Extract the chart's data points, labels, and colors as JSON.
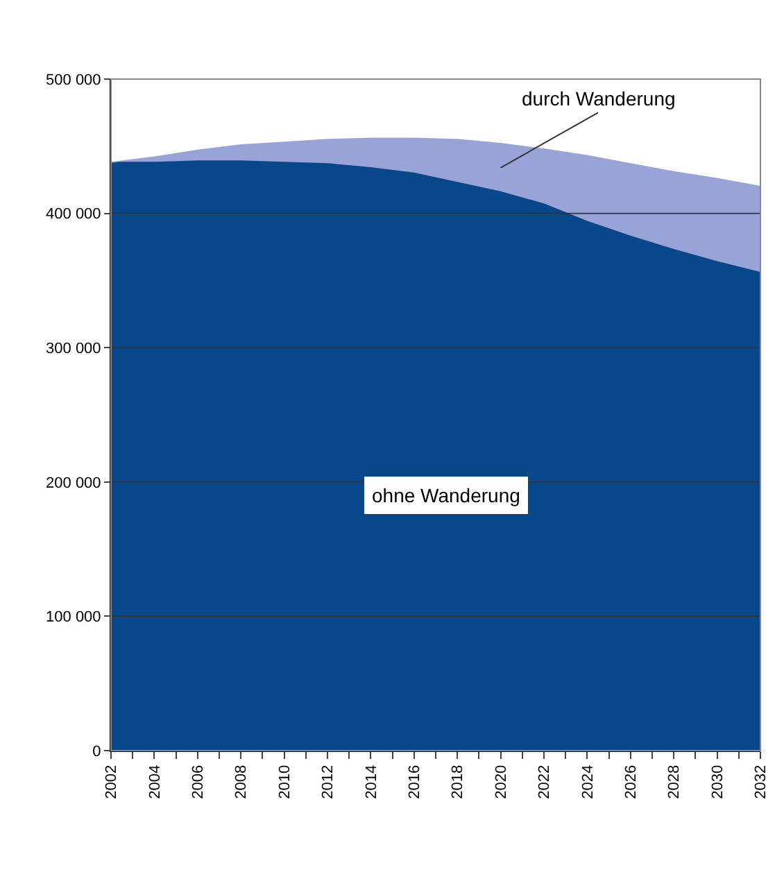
{
  "chart_data": {
    "type": "area",
    "stacked": true,
    "x": [
      2002,
      2004,
      2006,
      2008,
      2010,
      2012,
      2014,
      2016,
      2018,
      2020,
      2022,
      2024,
      2026,
      2028,
      2030,
      2032
    ],
    "series": [
      {
        "name": "ohne Wanderung",
        "color": "#08478a",
        "values": [
          438000,
          438000,
          439000,
          439000,
          438000,
          437000,
          434000,
          430000,
          423000,
          416000,
          407000,
          394000,
          383000,
          373000,
          364000,
          356000
        ]
      },
      {
        "name": "durch Wanderung",
        "color": "#98a4d8",
        "values": [
          0,
          4000,
          8000,
          12000,
          15000,
          18000,
          22000,
          26000,
          32000,
          36000,
          41000,
          49000,
          54000,
          58000,
          62000,
          64000
        ]
      }
    ],
    "xlim": [
      2002,
      2032
    ],
    "xticks": [
      2002,
      2004,
      2006,
      2008,
      2010,
      2012,
      2014,
      2016,
      2018,
      2020,
      2022,
      2024,
      2026,
      2028,
      2030,
      2032
    ],
    "ylim": [
      0,
      500000
    ],
    "yticks": [
      0,
      {
        "value": 100000,
        "label": "100 000"
      },
      {
        "value": 200000,
        "label": "200 000"
      },
      {
        "value": 300000,
        "label": "300 000"
      },
      {
        "value": 400000,
        "label": "400 000"
      },
      {
        "value": 500000,
        "label": "500 000"
      }
    ],
    "grid": "y",
    "legend": false
  }
}
